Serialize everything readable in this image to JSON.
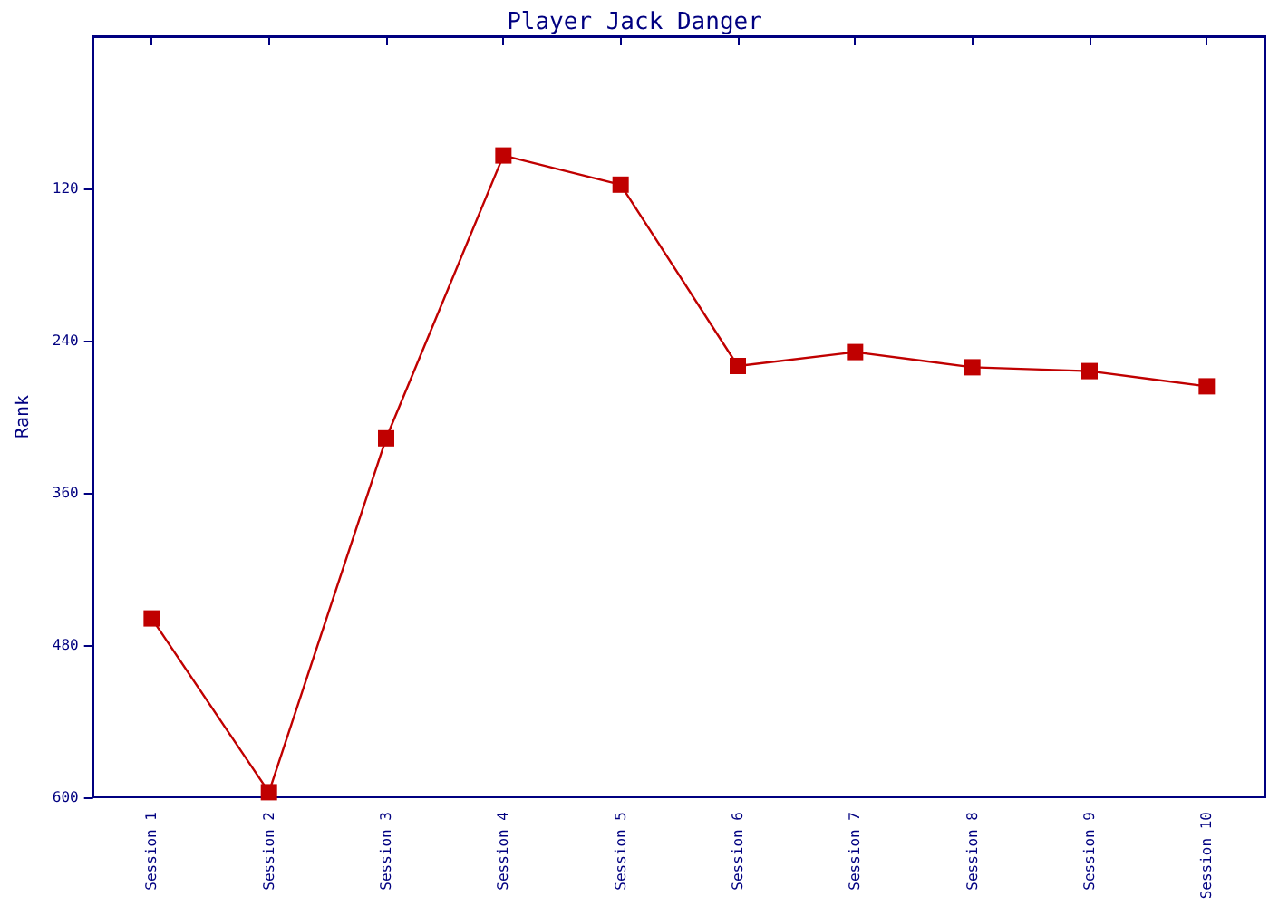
{
  "chart_data": {
    "type": "line",
    "title": "Player Jack Danger",
    "ylabel": "Rank",
    "categories": [
      "Session 1",
      "Session 2",
      "Session 3",
      "Session 4",
      "Session 5",
      "Session 6",
      "Session 7",
      "Session 8",
      "Session 9",
      "Session 10"
    ],
    "series": [
      {
        "color": "#c00000",
        "values": [
          459,
          596,
          317,
          94,
          117,
          260,
          249,
          261,
          264,
          276
        ]
      }
    ],
    "ylim": [
      600,
      0
    ],
    "yticks": [
      120,
      240,
      360,
      480,
      600
    ],
    "marker": "square",
    "line_style": "solid"
  }
}
